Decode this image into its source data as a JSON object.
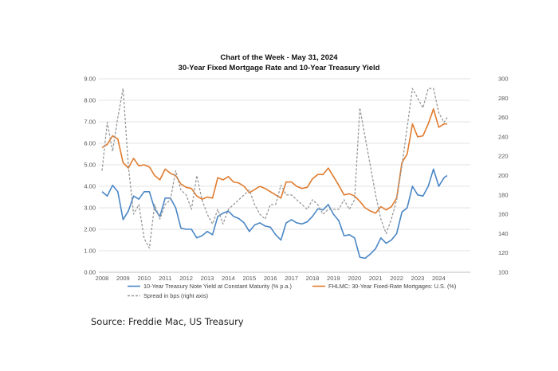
{
  "chart_data": {
    "type": "line",
    "title": "Chart of the Week - May 31, 2024",
    "subtitle": "30-Year Fixed Mortgage Rate and 10-Year Treasury Yield",
    "xlabel": "",
    "ylabel": "",
    "y2label": "",
    "xlim": [
      2008,
      2024.6
    ],
    "ylim": [
      0,
      9
    ],
    "y2lim": [
      100,
      300
    ],
    "grid": true,
    "legend_position": "bottom",
    "x_ticks": [
      "2008",
      "2009",
      "2010",
      "2011",
      "2012",
      "2013",
      "2014",
      "2015",
      "2016",
      "2017",
      "2018",
      "2019",
      "2020",
      "2021",
      "2022",
      "2023",
      "2024"
    ],
    "y_ticks": [
      "0.00",
      "1.00",
      "2.00",
      "3.00",
      "4.00",
      "5.00",
      "6.00",
      "7.00",
      "8.00",
      "9.00"
    ],
    "y2_ticks": [
      "100",
      "120",
      "140",
      "160",
      "180",
      "200",
      "220",
      "240",
      "260",
      "280",
      "300"
    ],
    "x": [
      2008.0,
      2008.25,
      2008.5,
      2008.75,
      2009.0,
      2009.25,
      2009.5,
      2009.75,
      2010.0,
      2010.25,
      2010.5,
      2010.75,
      2011.0,
      2011.25,
      2011.5,
      2011.75,
      2012.0,
      2012.25,
      2012.5,
      2012.75,
      2013.0,
      2013.25,
      2013.5,
      2013.75,
      2014.0,
      2014.25,
      2014.5,
      2014.75,
      2015.0,
      2015.25,
      2015.5,
      2015.75,
      2016.0,
      2016.25,
      2016.5,
      2016.75,
      2017.0,
      2017.25,
      2017.5,
      2017.75,
      2018.0,
      2018.25,
      2018.5,
      2018.75,
      2019.0,
      2019.25,
      2019.5,
      2019.75,
      2020.0,
      2020.25,
      2020.5,
      2020.75,
      2021.0,
      2021.25,
      2021.5,
      2021.75,
      2022.0,
      2022.25,
      2022.5,
      2022.75,
      2023.0,
      2023.25,
      2023.5,
      2023.75,
      2024.0,
      2024.25,
      2024.4
    ],
    "series": [
      {
        "name": "10-Year Treasury Note Yield at Constant Maturity (% p.a.)",
        "axis": "left",
        "color": "#4a86c5",
        "style": "solid",
        "values": [
          3.75,
          3.55,
          4.05,
          3.75,
          2.45,
          2.85,
          3.55,
          3.4,
          3.75,
          3.75,
          2.95,
          2.6,
          3.45,
          3.45,
          3.0,
          2.05,
          2.0,
          2.0,
          1.6,
          1.7,
          1.9,
          1.75,
          2.6,
          2.75,
          2.85,
          2.6,
          2.5,
          2.3,
          1.9,
          2.2,
          2.3,
          2.15,
          2.1,
          1.75,
          1.5,
          2.3,
          2.45,
          2.3,
          2.25,
          2.35,
          2.6,
          2.95,
          2.9,
          3.15,
          2.7,
          2.4,
          1.7,
          1.75,
          1.6,
          0.7,
          0.65,
          0.85,
          1.1,
          1.6,
          1.35,
          1.5,
          1.8,
          2.8,
          3.0,
          4.0,
          3.6,
          3.55,
          4.0,
          4.8,
          4.0,
          4.4,
          4.5
        ]
      },
      {
        "name": "FHLMC: 30-Year Fixed-Rate Mortgages: U.S. (%)",
        "axis": "left",
        "color": "#e07b2e",
        "style": "solid",
        "values": [
          5.8,
          5.95,
          6.35,
          6.2,
          5.1,
          4.85,
          5.3,
          4.95,
          5.0,
          4.9,
          4.5,
          4.3,
          4.8,
          4.6,
          4.5,
          4.1,
          3.95,
          3.9,
          3.55,
          3.4,
          3.5,
          3.45,
          4.4,
          4.3,
          4.45,
          4.2,
          4.15,
          4.0,
          3.7,
          3.85,
          4.0,
          3.9,
          3.75,
          3.6,
          3.45,
          4.2,
          4.2,
          4.0,
          3.9,
          3.95,
          4.35,
          4.55,
          4.55,
          4.85,
          4.45,
          4.05,
          3.6,
          3.65,
          3.55,
          3.3,
          3.0,
          2.85,
          2.75,
          3.05,
          2.9,
          3.05,
          3.45,
          5.1,
          5.5,
          6.9,
          6.3,
          6.35,
          6.9,
          7.6,
          6.75,
          6.9,
          6.9
        ]
      },
      {
        "name": "Spread in bps (right axis)",
        "axis": "right",
        "color": "#999999",
        "style": "dashed",
        "values": [
          205,
          255,
          225,
          260,
          290,
          210,
          160,
          170,
          135,
          125,
          170,
          155,
          170,
          175,
          205,
          185,
          180,
          165,
          200,
          175,
          160,
          150,
          165,
          150,
          165,
          170,
          175,
          180,
          185,
          170,
          160,
          155,
          170,
          170,
          190,
          180,
          180,
          175,
          170,
          165,
          175,
          170,
          160,
          165,
          165,
          165,
          175,
          165,
          175,
          270,
          240,
          210,
          180,
          155,
          140,
          155,
          175,
          210,
          250,
          290,
          280,
          270,
          290,
          290,
          265,
          255,
          260
        ]
      }
    ],
    "legend": [
      "10-Year Treasury Note Yield at Constant Maturity (% p.a.)",
      "FHLMC: 30-Year Fixed-Rate Mortgages: U.S. (%)",
      "Spread in bps (right axis)"
    ]
  },
  "source_note": "Source: Freddie Mac, US Treasury"
}
